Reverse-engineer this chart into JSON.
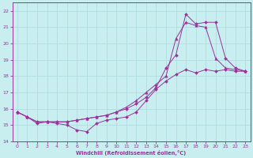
{
  "xlabel": "Windchill (Refroidissement éolien,°C)",
  "bg_color": "#c8eef0",
  "grid_color": "#b0dde0",
  "line_color": "#993399",
  "ylim": [
    14,
    22.5
  ],
  "xlim": [
    -0.5,
    23.5
  ],
  "yticks": [
    14,
    15,
    16,
    17,
    18,
    19,
    20,
    21,
    22
  ],
  "xticks": [
    0,
    1,
    2,
    3,
    4,
    5,
    6,
    7,
    8,
    9,
    10,
    11,
    12,
    13,
    14,
    15,
    16,
    17,
    18,
    19,
    20,
    21,
    22,
    23
  ],
  "line1_x": [
    0,
    1,
    2,
    3,
    4,
    5,
    6,
    7,
    8,
    9,
    10,
    11,
    12,
    13,
    14,
    15,
    16,
    17,
    18,
    19,
    20,
    21,
    22,
    23
  ],
  "line1_y": [
    15.8,
    15.5,
    15.1,
    15.2,
    15.1,
    15.0,
    14.7,
    14.6,
    15.1,
    15.3,
    15.4,
    15.5,
    15.8,
    16.5,
    17.2,
    17.7,
    18.1,
    18.4,
    18.2,
    18.4,
    18.3,
    18.4,
    18.3,
    18.3
  ],
  "line2_x": [
    0,
    1,
    2,
    3,
    4,
    5,
    6,
    7,
    8,
    9,
    10,
    11,
    12,
    13,
    14,
    15,
    16,
    17,
    18,
    19,
    20,
    21,
    22,
    23
  ],
  "line2_y": [
    15.8,
    15.5,
    15.2,
    15.2,
    15.2,
    15.2,
    15.3,
    15.4,
    15.5,
    15.6,
    15.8,
    16.1,
    16.5,
    17.0,
    17.5,
    18.0,
    20.3,
    21.3,
    21.1,
    21.0,
    19.1,
    18.5,
    18.4,
    18.3
  ],
  "line3_x": [
    0,
    1,
    2,
    3,
    4,
    5,
    6,
    7,
    8,
    9,
    10,
    11,
    12,
    13,
    14,
    15,
    16,
    17,
    18,
    19,
    20,
    21,
    22,
    23
  ],
  "line3_y": [
    15.8,
    15.5,
    15.2,
    15.2,
    15.2,
    15.2,
    15.3,
    15.4,
    15.5,
    15.6,
    15.8,
    16.0,
    16.3,
    16.7,
    17.3,
    18.5,
    19.3,
    21.8,
    21.2,
    21.3,
    21.3,
    19.1,
    18.5,
    18.3
  ],
  "marker1": "D",
  "marker2": "^",
  "marker3": "D",
  "markersize1": 2.0,
  "markersize2": 2.5,
  "markersize3": 2.0
}
